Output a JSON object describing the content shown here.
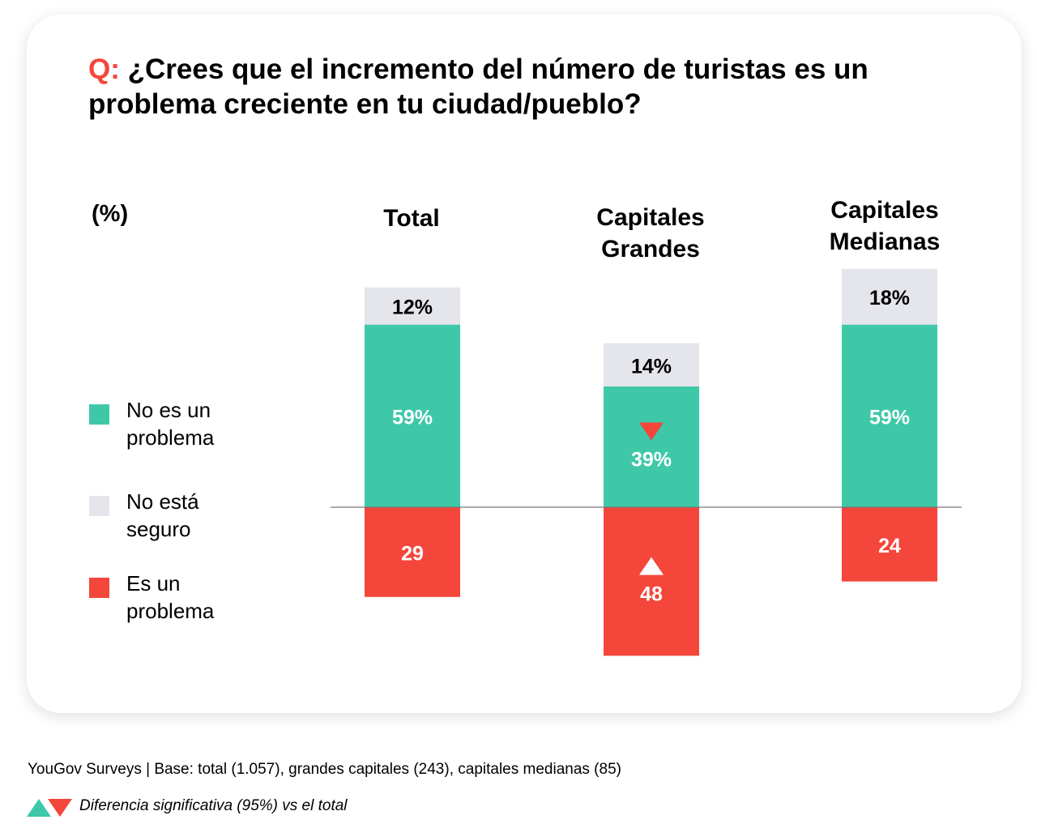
{
  "title": {
    "prefix": "Q:",
    "text": "¿Crees que el incremento del número de turistas es un problema creciente en tu ciudad/pueblo?"
  },
  "unit_label": "(%)",
  "legend": [
    {
      "label_line1": "No es un",
      "label_line2": "problema",
      "color": "#3ec8a8"
    },
    {
      "label_line1": "No está",
      "label_line2": "seguro",
      "color": "#e5e5ec"
    },
    {
      "label_line1": "Es un",
      "label_line2": "problema",
      "color": "#f4463a"
    }
  ],
  "footer": {
    "source": "YouGov Surveys | Base: total (1.057), grandes capitales (243), capitales medianas (85)",
    "significance_note": "Diferencia significativa (95%) vs el total"
  },
  "chart_data": {
    "type": "bar",
    "stacked": "diverging",
    "title": "¿Crees que el incremento del número de turistas es un problema creciente en tu ciudad/pueblo?",
    "ylabel": "(%)",
    "categories": [
      {
        "line1": "Total",
        "line2": ""
      },
      {
        "line1": "Capitales",
        "line2": "Grandes"
      },
      {
        "line1": "Capitales",
        "line2": "Medianas"
      }
    ],
    "series": [
      {
        "name": "No es un problema",
        "color": "#3ec8a8",
        "direction": "up",
        "values": [
          59,
          39,
          59
        ],
        "labels": [
          "59%",
          "39%",
          "59%"
        ],
        "label_color": "#ffffff",
        "significance": [
          null,
          "down",
          null
        ]
      },
      {
        "name": "No está seguro",
        "color": "#e5e5ec",
        "direction": "up",
        "values": [
          12,
          14,
          18
        ],
        "labels": [
          "12%",
          "14%",
          "18%"
        ],
        "label_color": "#000000",
        "significance": [
          null,
          null,
          null
        ]
      },
      {
        "name": "Es un problema",
        "color": "#f4463a",
        "direction": "down",
        "values": [
          29,
          48,
          24
        ],
        "labels": [
          "29",
          "48",
          "24"
        ],
        "label_color": "#ffffff",
        "significance": [
          null,
          "up",
          null
        ]
      }
    ],
    "significance_colors": {
      "up": "#3ec8a8",
      "down": "#f4463a"
    },
    "grid": false,
    "legend_position": "left"
  }
}
